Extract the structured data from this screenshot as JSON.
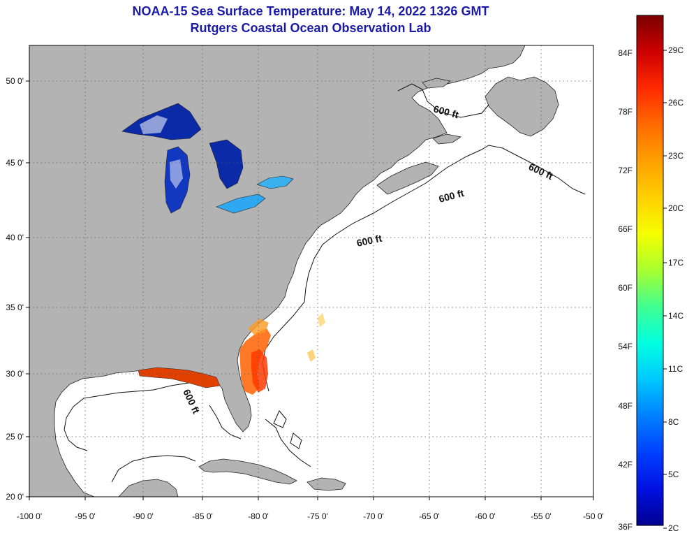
{
  "header": {
    "title_line1": "NOAA-15 Sea Surface Temperature:  May 14, 2022 1326 GMT",
    "title_line2": "Rutgers Coastal Ocean Observation Lab"
  },
  "map": {
    "lon_labels": [
      "-100 0'",
      "-95 0'",
      "-90 0'",
      "-85 0'",
      "-80 0'",
      "-75 0'",
      "-70 0'",
      "-65 0'",
      "-60 0'",
      "-55 0'",
      "-50 0'"
    ],
    "lat_labels": [
      "50 0'",
      "45 0'",
      "40 0'",
      "35 0'",
      "30 0'",
      "25 0'",
      "20 0'"
    ],
    "depth_labels": [
      "600 ft",
      "600 ft",
      "600 ft",
      "600 ft",
      "600 ft"
    ],
    "colors": {
      "land": "#b3b3b3",
      "water": "#ffffff",
      "grid": "#555555"
    }
  },
  "colorbar": {
    "f_labels": [
      "84F",
      "78F",
      "72F",
      "66F",
      "60F",
      "54F",
      "48F",
      "42F",
      "36F"
    ],
    "c_labels": [
      "29C",
      "26C",
      "23C",
      "20C",
      "17C",
      "14C",
      "11C",
      "8C",
      "5C",
      "2C"
    ],
    "gradient": [
      "#7a0000",
      "#cc0000",
      "#ff2a00",
      "#ff6a00",
      "#ffa000",
      "#ffd000",
      "#f5ff00",
      "#a8ff30",
      "#40ff90",
      "#00ffe0",
      "#00c8ff",
      "#0080ff",
      "#0040ff",
      "#0010e0",
      "#000090"
    ]
  }
}
